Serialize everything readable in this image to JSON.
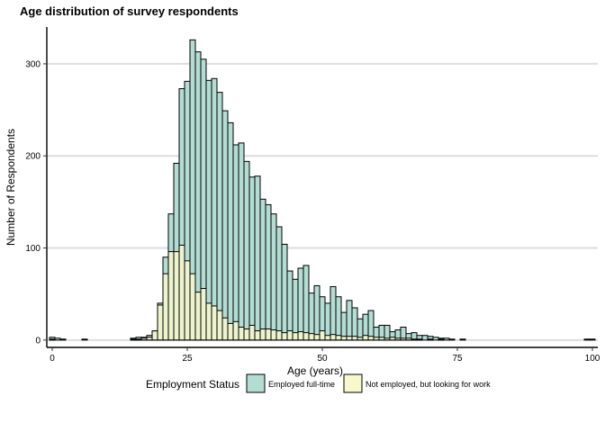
{
  "chart_data": {
    "type": "bar",
    "title": "Age distribution of survey respondents",
    "xlabel": "Age (years)",
    "ylabel": "Number of Respondents",
    "xlim": [
      -1,
      101
    ],
    "ylim": [
      -8,
      340
    ],
    "x_ticks": [
      0,
      25,
      50,
      75,
      100
    ],
    "y_ticks": [
      0,
      100,
      200,
      300
    ],
    "grid": "horizontal",
    "legend_position": "bottom",
    "legend_title": "Employment Status",
    "series": [
      {
        "name": "Employed full-time",
        "color": "#b3ddd2",
        "points": [
          [
            0,
            3
          ],
          [
            1,
            2
          ],
          [
            2,
            1
          ],
          [
            6,
            1
          ],
          [
            15,
            2
          ],
          [
            16,
            3
          ],
          [
            17,
            3
          ],
          [
            18,
            5
          ],
          [
            19,
            9
          ],
          [
            20,
            40
          ],
          [
            21,
            90
          ],
          [
            22,
            137
          ],
          [
            23,
            192
          ],
          [
            24,
            273
          ],
          [
            25,
            281
          ],
          [
            26,
            326
          ],
          [
            27,
            313
          ],
          [
            28,
            305
          ],
          [
            29,
            282
          ],
          [
            30,
            284
          ],
          [
            31,
            269
          ],
          [
            32,
            249
          ],
          [
            33,
            236
          ],
          [
            34,
            212
          ],
          [
            35,
            214
          ],
          [
            36,
            194
          ],
          [
            37,
            177
          ],
          [
            38,
            178
          ],
          [
            39,
            153
          ],
          [
            40,
            147
          ],
          [
            41,
            137
          ],
          [
            42,
            123
          ],
          [
            43,
            104
          ],
          [
            44,
            75
          ],
          [
            45,
            66
          ],
          [
            46,
            78
          ],
          [
            47,
            81
          ],
          [
            48,
            51
          ],
          [
            49,
            59
          ],
          [
            50,
            47
          ],
          [
            51,
            40
          ],
          [
            52,
            58
          ],
          [
            53,
            47
          ],
          [
            54,
            30
          ],
          [
            55,
            43
          ],
          [
            56,
            35
          ],
          [
            57,
            23
          ],
          [
            58,
            28
          ],
          [
            59,
            32
          ],
          [
            60,
            14
          ],
          [
            61,
            16
          ],
          [
            62,
            16
          ],
          [
            63,
            9
          ],
          [
            64,
            11
          ],
          [
            65,
            14
          ],
          [
            66,
            7
          ],
          [
            67,
            8
          ],
          [
            68,
            5
          ],
          [
            69,
            5
          ],
          [
            70,
            4
          ],
          [
            71,
            3
          ],
          [
            72,
            2
          ],
          [
            73,
            2
          ],
          [
            74,
            1
          ],
          [
            76,
            1
          ],
          [
            99,
            1
          ],
          [
            100,
            1
          ]
        ]
      },
      {
        "name": "Not employed, but looking for work",
        "color": "#f7f8cc",
        "points": [
          [
            0,
            1
          ],
          [
            15,
            1
          ],
          [
            16,
            1
          ],
          [
            17,
            2
          ],
          [
            18,
            3
          ],
          [
            19,
            10
          ],
          [
            20,
            38
          ],
          [
            21,
            72
          ],
          [
            22,
            96
          ],
          [
            23,
            96
          ],
          [
            24,
            103
          ],
          [
            25,
            86
          ],
          [
            26,
            72
          ],
          [
            27,
            52
          ],
          [
            28,
            56
          ],
          [
            29,
            40
          ],
          [
            30,
            37
          ],
          [
            31,
            32
          ],
          [
            32,
            24
          ],
          [
            33,
            18
          ],
          [
            34,
            20
          ],
          [
            35,
            14
          ],
          [
            36,
            12
          ],
          [
            37,
            16
          ],
          [
            38,
            10
          ],
          [
            39,
            12
          ],
          [
            40,
            12
          ],
          [
            41,
            11
          ],
          [
            42,
            10
          ],
          [
            43,
            8
          ],
          [
            44,
            10
          ],
          [
            45,
            8
          ],
          [
            46,
            9
          ],
          [
            47,
            8
          ],
          [
            48,
            7
          ],
          [
            49,
            6
          ],
          [
            50,
            10
          ],
          [
            51,
            5
          ],
          [
            52,
            6
          ],
          [
            53,
            5
          ],
          [
            54,
            4
          ],
          [
            55,
            4
          ],
          [
            56,
            4
          ],
          [
            57,
            3
          ],
          [
            58,
            5
          ],
          [
            59,
            4
          ],
          [
            60,
            3
          ],
          [
            61,
            3
          ],
          [
            62,
            2
          ],
          [
            63,
            3
          ],
          [
            64,
            2
          ],
          [
            65,
            2
          ],
          [
            66,
            2
          ],
          [
            67,
            1
          ],
          [
            68,
            1
          ],
          [
            70,
            1
          ],
          [
            72,
            1
          ]
        ]
      }
    ]
  }
}
